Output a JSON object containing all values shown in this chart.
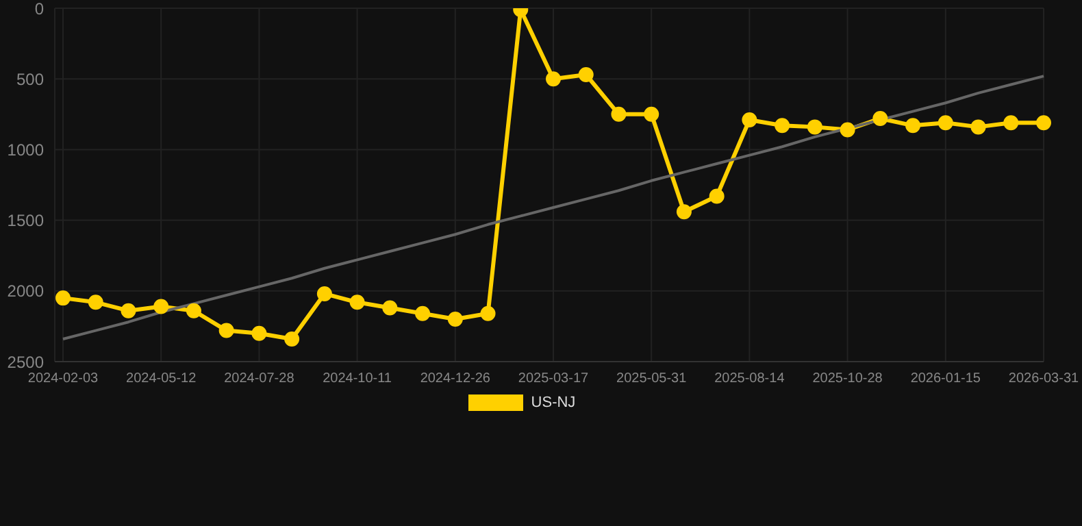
{
  "chart_data": {
    "type": "line",
    "categories": [
      "2024-02-03",
      null,
      null,
      "2024-05-12",
      null,
      null,
      "2024-07-28",
      null,
      null,
      "2024-10-11",
      null,
      null,
      "2024-12-26",
      null,
      null,
      "2025-03-17",
      null,
      null,
      "2025-05-31",
      null,
      null,
      "2025-08-14",
      null,
      null,
      "2025-10-28",
      null,
      null,
      "2026-01-15",
      null,
      null,
      "2026-03-31"
    ],
    "series": [
      {
        "name": "US-NJ",
        "color": "#ffd000",
        "marker": "circle",
        "values": [
          2050,
          2080,
          2140,
          2110,
          2140,
          2280,
          2300,
          2340,
          2020,
          2080,
          2120,
          2160,
          2200,
          2160,
          10,
          500,
          470,
          750,
          750,
          1440,
          1330,
          790,
          830,
          840,
          860,
          780,
          830,
          810,
          840,
          810,
          810
        ]
      },
      {
        "type": "line",
        "color": "#666666",
        "marker": "none",
        "values": [
          2340,
          2280,
          2220,
          2150,
          2090,
          2030,
          1970,
          1910,
          1840,
          1780,
          1720,
          1660,
          1600,
          1530,
          1470,
          1410,
          1350,
          1290,
          1220,
          1160,
          1100,
          1040,
          980,
          910,
          850,
          790,
          730,
          670,
          600,
          540,
          480
        ]
      }
    ],
    "ylim": [
      2500,
      0
    ],
    "yticks": [
      0,
      500,
      1000,
      1500,
      2000,
      2500
    ],
    "grid": true,
    "legend": "bottom"
  }
}
